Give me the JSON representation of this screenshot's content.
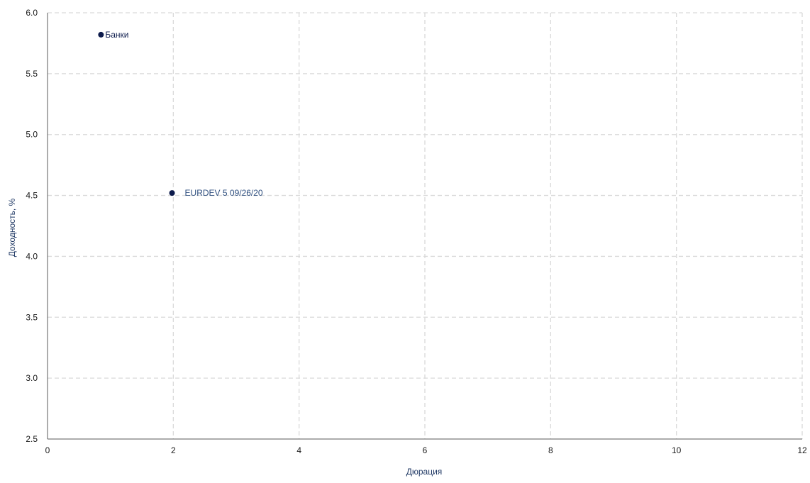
{
  "colors": {
    "point": "#0d1b4c",
    "label_primary": "#0d1b4c",
    "label_secondary": "#2f4f7f",
    "axis_title": "#1f3864",
    "grid": "#d9d9d9"
  },
  "chart_data": {
    "type": "scatter",
    "title": "",
    "xlabel": "Дюрация",
    "ylabel": "Доходность, %",
    "xlim": [
      0,
      12
    ],
    "ylim": [
      2.5,
      6.0
    ],
    "x_ticks": [
      "0",
      "2",
      "4",
      "6",
      "8",
      "10",
      "12"
    ],
    "y_ticks": [
      "2.5",
      "3.0",
      "3.5",
      "4.0",
      "4.5",
      "5.0",
      "5.5",
      "6.0"
    ],
    "grid": true,
    "legend": "none",
    "points": [
      {
        "label": "Банки",
        "x": 0.85,
        "y": 5.82,
        "label_color": "label_primary"
      },
      {
        "label": "EURDEV 5 09/26/20",
        "x": 1.98,
        "y": 4.52,
        "label_color": "label_secondary"
      }
    ]
  }
}
